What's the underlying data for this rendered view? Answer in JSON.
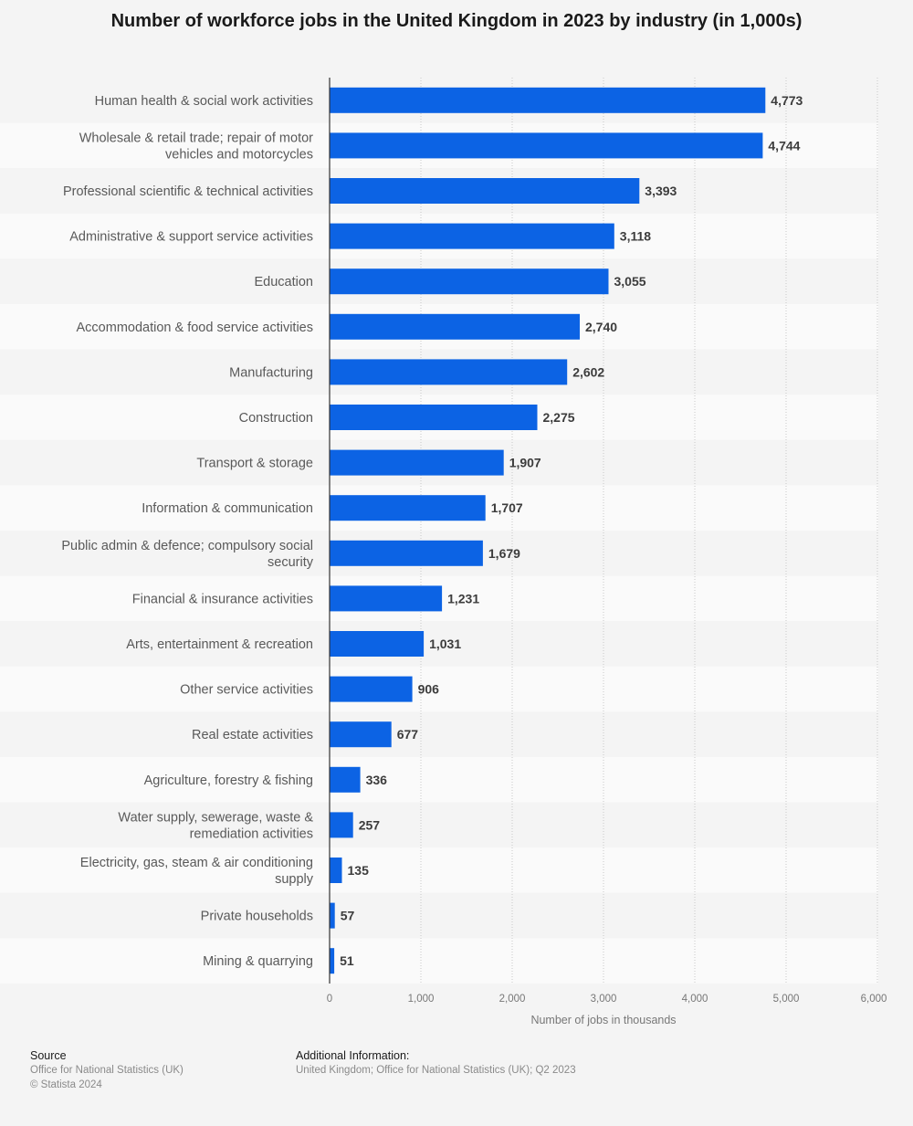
{
  "chart_data": {
    "type": "bar",
    "orientation": "horizontal",
    "title": "Number of workforce jobs in the United Kingdom in 2023 by industry (in 1,000s)",
    "xlabel": "Number of jobs in thousands",
    "xlim": [
      0,
      6000
    ],
    "xticks": [
      "0",
      "1,000",
      "2,000",
      "3,000",
      "4,000",
      "5,000",
      "6,000"
    ],
    "grid": true,
    "categories": [
      [
        "Human health & social work activities"
      ],
      [
        "Wholesale & retail trade; repair of motor",
        "vehicles and motorcycles"
      ],
      [
        "Professional scientific & technical activities"
      ],
      [
        "Administrative & support service activities"
      ],
      [
        "Education"
      ],
      [
        "Accommodation & food service activities"
      ],
      [
        "Manufacturing"
      ],
      [
        "Construction"
      ],
      [
        "Transport & storage"
      ],
      [
        "Information & communication"
      ],
      [
        "Public admin & defence; compulsory social",
        "security"
      ],
      [
        "Financial & insurance activities"
      ],
      [
        "Arts, entertainment & recreation"
      ],
      [
        "Other service activities"
      ],
      [
        "Real estate activities"
      ],
      [
        "Agriculture, forestry & fishing"
      ],
      [
        "Water supply, sewerage, waste &",
        "remediation activities"
      ],
      [
        "Electricity, gas, steam & air conditioning",
        "supply"
      ],
      [
        "Private households"
      ],
      [
        "Mining & quarrying"
      ]
    ],
    "values": [
      4773,
      4744,
      3393,
      3118,
      3055,
      2740,
      2602,
      2275,
      1907,
      1707,
      1679,
      1231,
      1031,
      906,
      677,
      336,
      257,
      135,
      57,
      51
    ],
    "value_labels": [
      "4,773",
      "4,744",
      "3,393",
      "3,118",
      "3,055",
      "2,740",
      "2,602",
      "2,275",
      "1,907",
      "1,707",
      "1,679",
      "1,231",
      "1,031",
      "906",
      "677",
      "336",
      "257",
      "135",
      "57",
      "51"
    ],
    "bar_color": "#0c63e4"
  },
  "footer": {
    "source_heading": "Source",
    "source_text": "Office for National Statistics (UK)",
    "copyright": "© Statista 2024",
    "info_heading": "Additional Information:",
    "info_text": "United Kingdom; Office for National Statistics (UK); Q2 2023"
  }
}
